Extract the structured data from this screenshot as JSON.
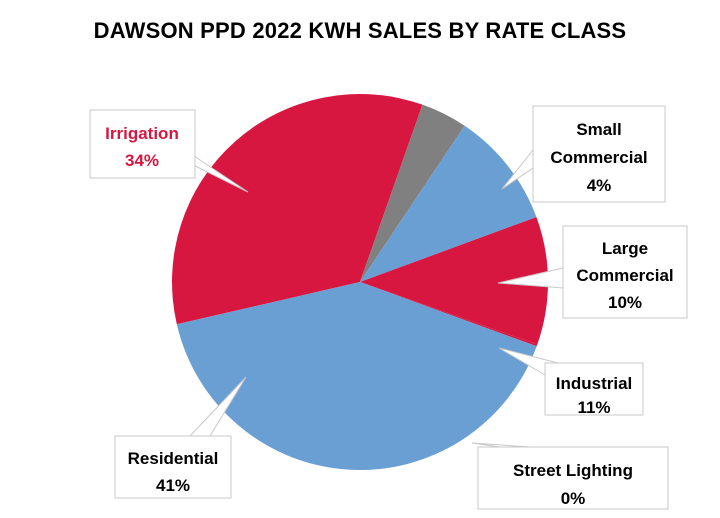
{
  "chart_data": {
    "type": "pie",
    "title": "DAWSON PPD 2022 KWH SALES BY RATE CLASS",
    "slices": [
      {
        "label": "Irrigation",
        "value": 34,
        "value_label": "34%",
        "color": "#d81740",
        "text_color": "#d81740"
      },
      {
        "label": "Small Commercial",
        "value": 4,
        "value_label": "4%",
        "color": "#808080",
        "text_color": "#000000"
      },
      {
        "label": "Large Commercial",
        "value": 10,
        "value_label": "10%",
        "color": "#6a9fd4",
        "text_color": "#000000"
      },
      {
        "label": "Industrial",
        "value": 11,
        "value_label": "11%",
        "color": "#d81740",
        "text_color": "#000000"
      },
      {
        "label": "Street Lighting",
        "value": 0,
        "value_label": "0%",
        "color": "#d81740",
        "text_color": "#000000"
      },
      {
        "label": "Residential",
        "value": 41,
        "value_label": "41%",
        "color": "#6a9fd4",
        "text_color": "#000000"
      }
    ]
  }
}
